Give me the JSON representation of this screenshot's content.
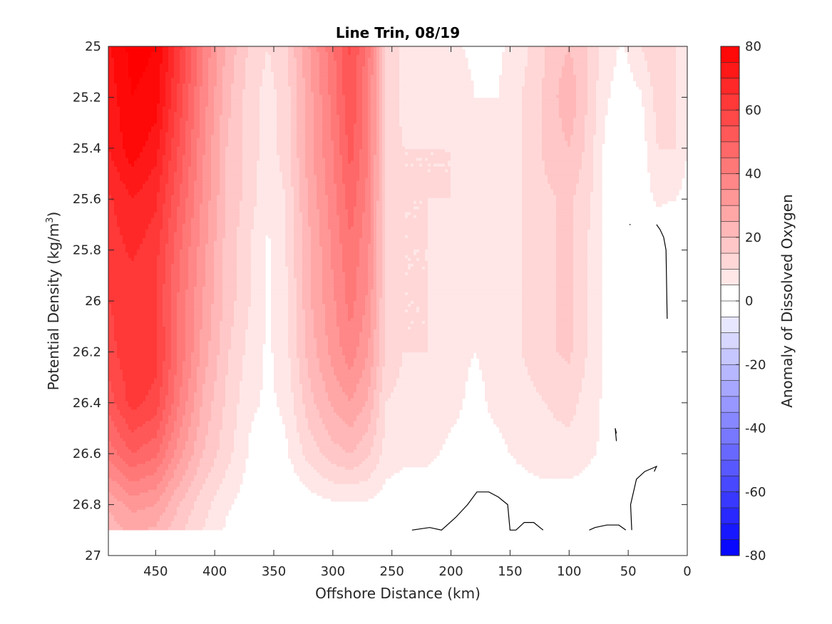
{
  "chart_data": {
    "type": "heatmap",
    "subtype": "filled-contour",
    "title": "Line Trin, 08/19",
    "xlabel": "Offshore Distance (km)",
    "ylabel": "Potential Density (kg/m³)",
    "ylabel_main": "Potential Density (kg/m",
    "ylabel_sup": "3",
    "ylabel_end": ")",
    "xlim": [
      490,
      0
    ],
    "ylim": [
      27,
      25
    ],
    "x_reversed": true,
    "y_reversed": true,
    "x_ticks": [
      450,
      400,
      350,
      300,
      250,
      200,
      150,
      100,
      50,
      0
    ],
    "x_tick_labels": [
      "450",
      "400",
      "350",
      "300",
      "250",
      "200",
      "150",
      "100",
      "50",
      "0"
    ],
    "y_ticks": [
      25,
      25.2,
      25.4,
      25.6,
      25.8,
      26,
      26.2,
      26.4,
      26.6,
      26.8,
      27
    ],
    "y_tick_labels": [
      "25",
      "25.2",
      "25.4",
      "25.6",
      "25.8",
      "26",
      "26.2",
      "26.4",
      "26.6",
      "26.8",
      "27"
    ],
    "colorbar": {
      "label": "Anomaly of Dissolved Oxygen",
      "range": [
        -80,
        80
      ],
      "step": 5,
      "tick_values": [
        80,
        60,
        40,
        20,
        0,
        -20,
        -40,
        -60,
        -80
      ],
      "tick_labels": [
        "80",
        "60",
        "40",
        "20",
        "0",
        "-20",
        "-40",
        "-60",
        "-80"
      ],
      "color_low": "#0000ff",
      "color_mid": "#ffffff",
      "color_high": "#ff0000"
    },
    "data_bottom_density": 26.9,
    "zero_contour_lines": [
      [
        [
          233,
          26.9
        ],
        [
          218,
          26.89
        ],
        [
          208,
          26.9
        ],
        [
          196,
          26.85
        ],
        [
          186,
          26.8
        ],
        [
          178,
          26.75
        ],
        [
          168,
          26.75
        ],
        [
          160,
          26.77
        ],
        [
          152,
          26.8
        ],
        [
          150,
          26.9
        ],
        [
          145,
          26.9
        ],
        [
          138,
          26.87
        ],
        [
          130,
          26.87
        ],
        [
          122,
          26.9
        ]
      ],
      [
        [
          83,
          26.9
        ],
        [
          78,
          26.89
        ],
        [
          68,
          26.88
        ],
        [
          58,
          26.88
        ],
        [
          52,
          26.9
        ]
      ],
      [
        [
          47,
          26.9
        ],
        [
          48,
          26.8
        ],
        [
          43,
          26.7
        ],
        [
          36,
          26.67
        ],
        [
          26,
          26.65
        ],
        [
          28,
          26.67
        ]
      ],
      [
        [
          17,
          26.07
        ],
        [
          18,
          25.8
        ],
        [
          20,
          25.75
        ],
        [
          23,
          25.72
        ],
        [
          26,
          25.7
        ]
      ],
      [
        [
          60,
          26.52
        ],
        [
          61,
          26.5
        ],
        [
          60,
          26.55
        ]
      ],
      [
        [
          49,
          25.7
        ],
        [
          48,
          25.7
        ]
      ]
    ],
    "anomaly_grid": {
      "x": [
        490,
        470,
        450,
        430,
        410,
        390,
        370,
        355,
        340,
        320,
        300,
        285,
        270,
        255,
        240,
        220,
        200,
        180,
        160,
        140,
        120,
        100,
        85,
        70,
        55,
        40,
        25,
        10,
        0
      ],
      "y": [
        25.0,
        25.2,
        25.4,
        25.6,
        25.8,
        26.0,
        26.2,
        26.4,
        26.6,
        26.8,
        26.9
      ],
      "values": [
        [
          74,
          82,
          80,
          62,
          40,
          24,
          14,
          10,
          14,
          30,
          44,
          56,
          42,
          14,
          8,
          8,
          6,
          4,
          4,
          8,
          15,
          20,
          15,
          8,
          4,
          10,
          14,
          10,
          5
        ],
        [
          72,
          80,
          78,
          58,
          38,
          22,
          12,
          8,
          12,
          28,
          42,
          55,
          40,
          14,
          8,
          8,
          8,
          5,
          5,
          10,
          16,
          24,
          15,
          6,
          2,
          4,
          12,
          10,
          5
        ],
        [
          70,
          78,
          72,
          54,
          36,
          20,
          12,
          8,
          12,
          28,
          40,
          52,
          40,
          14,
          10,
          10,
          10,
          6,
          6,
          10,
          16,
          20,
          14,
          4,
          0,
          2,
          10,
          10,
          5
        ],
        [
          64,
          70,
          66,
          50,
          34,
          20,
          12,
          6,
          10,
          26,
          38,
          48,
          38,
          14,
          10,
          10,
          10,
          8,
          6,
          10,
          14,
          16,
          12,
          4,
          0,
          2,
          6,
          5,
          3
        ],
        [
          62,
          66,
          62,
          46,
          32,
          18,
          10,
          4,
          10,
          24,
          36,
          44,
          36,
          14,
          10,
          10,
          8,
          6,
          6,
          10,
          14,
          16,
          10,
          4,
          0,
          0,
          0,
          -2,
          0
        ],
        [
          60,
          62,
          60,
          44,
          30,
          18,
          10,
          4,
          8,
          24,
          34,
          42,
          34,
          14,
          10,
          10,
          8,
          5,
          6,
          10,
          14,
          16,
          10,
          4,
          0,
          0,
          -2,
          -4,
          0
        ],
        [
          58,
          64,
          62,
          44,
          28,
          16,
          8,
          4,
          8,
          22,
          32,
          38,
          30,
          14,
          10,
          10,
          6,
          5,
          6,
          10,
          14,
          16,
          10,
          4,
          0,
          0,
          0,
          0,
          0
        ],
        [
          52,
          62,
          58,
          40,
          24,
          14,
          6,
          4,
          6,
          18,
          26,
          30,
          24,
          10,
          8,
          8,
          6,
          4,
          6,
          8,
          10,
          12,
          8,
          4,
          0,
          2,
          2,
          2,
          2
        ],
        [
          42,
          50,
          46,
          32,
          20,
          12,
          4,
          2,
          4,
          12,
          18,
          20,
          16,
          8,
          6,
          6,
          4,
          4,
          4,
          6,
          8,
          8,
          6,
          4,
          2,
          4,
          4,
          4,
          2
        ],
        [
          26,
          32,
          30,
          20,
          12,
          6,
          2,
          0,
          0,
          2,
          4,
          4,
          4,
          2,
          2,
          2,
          2,
          2,
          2,
          2,
          2,
          2,
          2,
          0,
          0,
          0,
          0,
          0,
          0
        ],
        [
          22,
          26,
          24,
          16,
          10,
          4,
          0,
          0,
          0,
          0,
          0,
          0,
          0,
          0,
          0,
          0,
          0,
          0,
          0,
          0,
          0,
          0,
          0,
          0,
          0,
          0,
          0,
          0,
          0
        ]
      ]
    }
  }
}
